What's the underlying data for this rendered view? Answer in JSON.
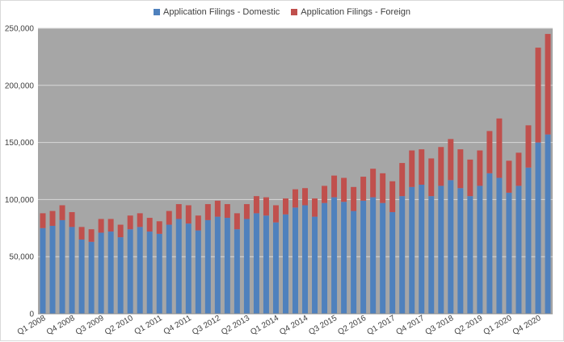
{
  "chart_data": {
    "type": "bar",
    "stacked": true,
    "title": "",
    "xlabel": "",
    "ylabel": "",
    "ylim": [
      0,
      250000
    ],
    "yticks": [
      0,
      50000,
      100000,
      150000,
      200000,
      250000
    ],
    "ytick_labels": [
      "0",
      "50,000",
      "100,000",
      "150,000",
      "200,000",
      "250,000"
    ],
    "grid": true,
    "legend_position": "top",
    "plot_background": "#a6a6a6",
    "categories": [
      "Q1 2008",
      "Q2 2008",
      "Q3 2008",
      "Q4 2008",
      "Q1 2009",
      "Q2 2009",
      "Q3 2009",
      "Q4 2009",
      "Q1 2010",
      "Q2 2010",
      "Q3 2010",
      "Q4 2010",
      "Q1 2011",
      "Q2 2011",
      "Q3 2011",
      "Q4 2011",
      "Q1 2012",
      "Q2 2012",
      "Q3 2012",
      "Q4 2012",
      "Q1 2013",
      "Q2 2013",
      "Q3 2013",
      "Q4 2013",
      "Q1 2014",
      "Q2 2014",
      "Q3 2014",
      "Q4 2014",
      "Q1 2015",
      "Q2 2015",
      "Q3 2015",
      "Q4 2015",
      "Q1 2016",
      "Q2 2016",
      "Q3 2016",
      "Q4 2016",
      "Q1 2017",
      "Q2 2017",
      "Q3 2017",
      "Q4 2017",
      "Q1 2018",
      "Q2 2018",
      "Q3 2018",
      "Q4 2018",
      "Q1 2019",
      "Q2 2019",
      "Q3 2019",
      "Q4 2019",
      "Q1 2020",
      "Q2 2020",
      "Q3 2020",
      "Q4 2020",
      "Q1 2021"
    ],
    "shown_tick_labels": [
      "Q1 2008",
      "Q4 2008",
      "Q3 2009",
      "Q2 2010",
      "Q1 2011",
      "Q4 2011",
      "Q3 2012",
      "Q2 2013",
      "Q1 2014",
      "Q4 2014",
      "Q3 2015",
      "Q2 2016",
      "Q1 2017",
      "Q4 2017",
      "Q3 2018",
      "Q2 2019",
      "Q1 2020",
      "Q4 2020"
    ],
    "series": [
      {
        "name": "Application Filings - Domestic",
        "color": "#4f81bd",
        "values": [
          75000,
          77000,
          82000,
          76000,
          65000,
          63000,
          71000,
          72000,
          67000,
          74000,
          76000,
          72000,
          70000,
          78000,
          83000,
          79000,
          73000,
          82000,
          85000,
          84000,
          74000,
          83000,
          88000,
          86000,
          80000,
          87000,
          93000,
          95000,
          85000,
          97000,
          102000,
          98000,
          90000,
          99000,
          102000,
          97000,
          89000,
          103000,
          111000,
          113000,
          103000,
          112000,
          117000,
          110000,
          103000,
          112000,
          123000,
          119000,
          106000,
          112000,
          128000,
          150000,
          157000
        ]
      },
      {
        "name": "Application Filings - Foreign",
        "color": "#c0504d",
        "values": [
          13000,
          13000,
          13000,
          13000,
          11000,
          11000,
          12000,
          11000,
          11000,
          12000,
          12000,
          12000,
          11000,
          12000,
          13000,
          16000,
          13000,
          14000,
          14000,
          12000,
          14000,
          13000,
          15000,
          16000,
          15000,
          14000,
          16000,
          15000,
          16000,
          15000,
          19000,
          21000,
          21000,
          21000,
          25000,
          26000,
          27000,
          29000,
          32000,
          31000,
          33000,
          34000,
          36000,
          34000,
          32000,
          31000,
          37000,
          52000,
          28000,
          29000,
          37000,
          83000,
          88000
        ]
      }
    ]
  }
}
